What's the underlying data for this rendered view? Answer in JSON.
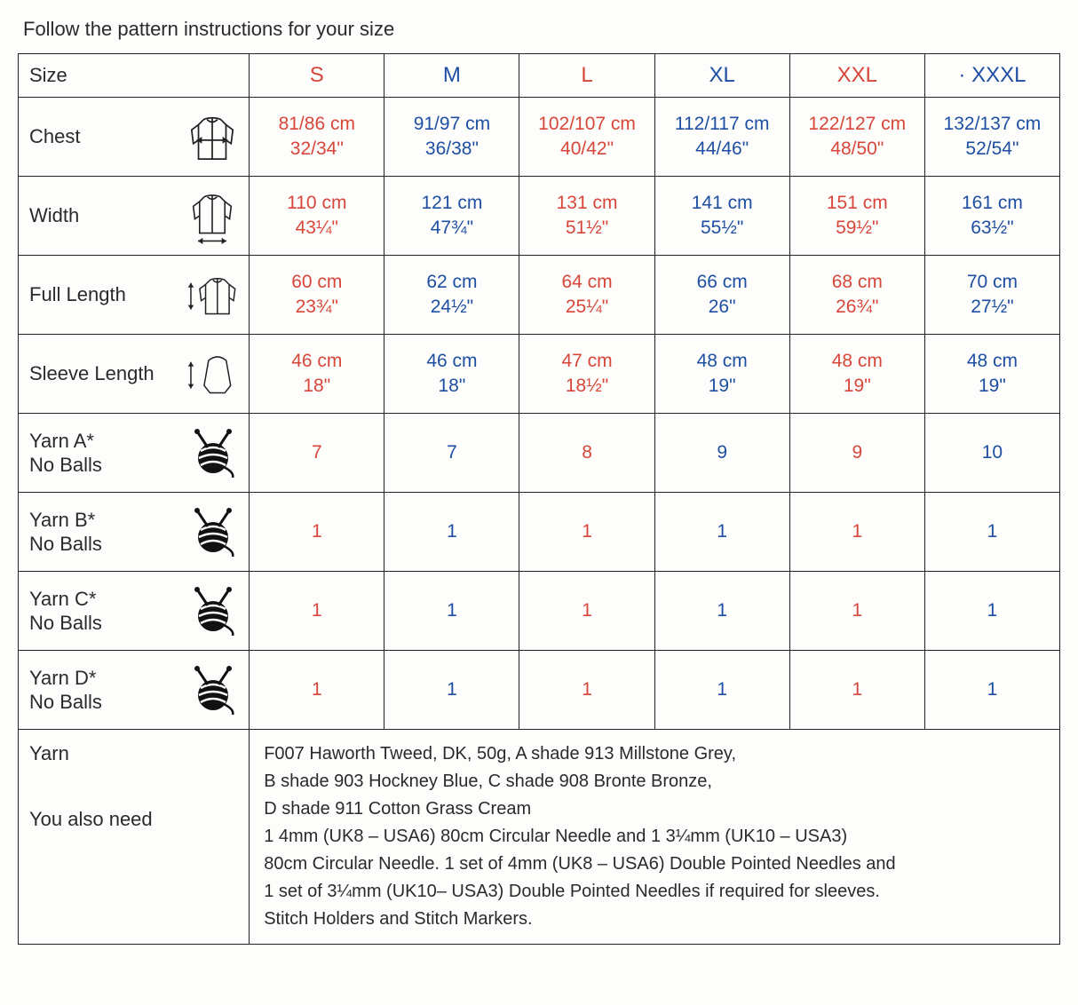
{
  "instruction": "Follow the pattern instructions for your size",
  "headers": {
    "size": "Size",
    "sizes": [
      {
        "label": "S",
        "color": "red"
      },
      {
        "label": "M",
        "color": "blue"
      },
      {
        "label": "L",
        "color": "red"
      },
      {
        "label": "XL",
        "color": "blue"
      },
      {
        "label": "XXL",
        "color": "red"
      },
      {
        "label": "· XXXL",
        "color": "blue"
      }
    ]
  },
  "rows": {
    "chest": {
      "label": "Chest",
      "vals": [
        {
          "m": "81/86 cm",
          "i": "32/34\"",
          "c": "red"
        },
        {
          "m": "91/97 cm",
          "i": "36/38\"",
          "c": "blue"
        },
        {
          "m": "102/107 cm",
          "i": "40/42\"",
          "c": "red"
        },
        {
          "m": "112/117 cm",
          "i": "44/46\"",
          "c": "blue"
        },
        {
          "m": "122/127 cm",
          "i": "48/50\"",
          "c": "red"
        },
        {
          "m": "132/137 cm",
          "i": "52/54\"",
          "c": "blue"
        }
      ]
    },
    "width": {
      "label": "Width",
      "vals": [
        {
          "m": "110 cm",
          "i": "43¼\"",
          "c": "red"
        },
        {
          "m": "121 cm",
          "i": "47¾\"",
          "c": "blue"
        },
        {
          "m": "131 cm",
          "i": "51½\"",
          "c": "red"
        },
        {
          "m": "141 cm",
          "i": "55½\"",
          "c": "blue"
        },
        {
          "m": "151 cm",
          "i": "59½\"",
          "c": "red"
        },
        {
          "m": "161 cm",
          "i": "63½\"",
          "c": "blue"
        }
      ]
    },
    "full_length": {
      "label": "Full Length",
      "vals": [
        {
          "m": "60 cm",
          "i": "23¾\"",
          "c": "red"
        },
        {
          "m": "62 cm",
          "i": "24½\"",
          "c": "blue"
        },
        {
          "m": "64 cm",
          "i": "25¼\"",
          "c": "red"
        },
        {
          "m": "66 cm",
          "i": "26\"",
          "c": "blue"
        },
        {
          "m": "68 cm",
          "i": "26¾\"",
          "c": "red"
        },
        {
          "m": "70 cm",
          "i": "27½\"",
          "c": "blue"
        }
      ]
    },
    "sleeve_length": {
      "label": "Sleeve Length",
      "vals": [
        {
          "m": "46 cm",
          "i": "18\"",
          "c": "red"
        },
        {
          "m": "46 cm",
          "i": "18\"",
          "c": "blue"
        },
        {
          "m": "47 cm",
          "i": "18½\"",
          "c": "red"
        },
        {
          "m": "48 cm",
          "i": "19\"",
          "c": "blue"
        },
        {
          "m": "48 cm",
          "i": "19\"",
          "c": "red"
        },
        {
          "m": "48 cm",
          "i": "19\"",
          "c": "blue"
        }
      ]
    },
    "yarn_a": {
      "label": "Yarn A*\nNo Balls",
      "vals": [
        {
          "v": "7",
          "c": "red"
        },
        {
          "v": "7",
          "c": "blue"
        },
        {
          "v": "8",
          "c": "red"
        },
        {
          "v": "9",
          "c": "blue"
        },
        {
          "v": "9",
          "c": "red"
        },
        {
          "v": "10",
          "c": "blue"
        }
      ]
    },
    "yarn_b": {
      "label": "Yarn B*\nNo Balls",
      "vals": [
        {
          "v": "1",
          "c": "red"
        },
        {
          "v": "1",
          "c": "blue"
        },
        {
          "v": "1",
          "c": "red"
        },
        {
          "v": "1",
          "c": "blue"
        },
        {
          "v": "1",
          "c": "red"
        },
        {
          "v": "1",
          "c": "blue"
        }
      ]
    },
    "yarn_c": {
      "label": "Yarn C*\nNo Balls",
      "vals": [
        {
          "v": "1",
          "c": "red"
        },
        {
          "v": "1",
          "c": "blue"
        },
        {
          "v": "1",
          "c": "red"
        },
        {
          "v": "1",
          "c": "blue"
        },
        {
          "v": "1",
          "c": "red"
        },
        {
          "v": "1",
          "c": "blue"
        }
      ]
    },
    "yarn_d": {
      "label": "Yarn D*\nNo Balls",
      "vals": [
        {
          "v": "1",
          "c": "red"
        },
        {
          "v": "1",
          "c": "blue"
        },
        {
          "v": "1",
          "c": "red"
        },
        {
          "v": "1",
          "c": "blue"
        },
        {
          "v": "1",
          "c": "red"
        },
        {
          "v": "1",
          "c": "blue"
        }
      ]
    }
  },
  "footer": {
    "label1": "Yarn",
    "label2": "You also need",
    "line1": "F007 Haworth Tweed, DK, 50g, A shade 913 Millstone Grey,",
    "line2": "B shade 903 Hockney Blue, C shade 908 Bronte Bronze,",
    "line3": "D shade 911 Cotton Grass Cream",
    "line4": "1 4mm (UK8 – USA6) 80cm Circular Needle and 1 3¼mm (UK10 – USA3)",
    "line5": "80cm Circular Needle. 1 set of 4mm (UK8 – USA6) Double Pointed Needles and",
    "line6": "1 set of 3¼mm (UK10– USA3) Double Pointed Needles if required for sleeves.",
    "line7": "Stitch Holders and Stitch Markers."
  }
}
